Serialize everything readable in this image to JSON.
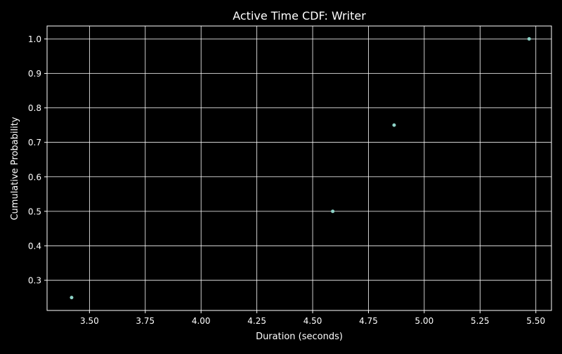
{
  "chart_data": {
    "type": "scatter",
    "title": "Active Time CDF: Writer",
    "xlabel": "Duration (seconds)",
    "ylabel": "Cumulative Probability",
    "xlim": [
      3.31,
      5.57
    ],
    "ylim": [
      0.2125,
      1.0375
    ],
    "xticks": [
      3.5,
      3.75,
      4.0,
      4.25,
      4.5,
      4.75,
      5.0,
      5.25,
      5.5
    ],
    "xtick_labels": [
      "3.50",
      "3.75",
      "4.00",
      "4.25",
      "4.50",
      "4.75",
      "5.00",
      "5.25",
      "5.50"
    ],
    "yticks": [
      0.3,
      0.4,
      0.5,
      0.6,
      0.7,
      0.8,
      0.9,
      1.0
    ],
    "ytick_labels": [
      "0.3",
      "0.4",
      "0.5",
      "0.6",
      "0.7",
      "0.8",
      "0.9",
      "1.0"
    ],
    "grid": true,
    "colors": {
      "background": "#000000",
      "foreground": "#ffffff",
      "grid": "#ffffff",
      "point": "#8dd3c7"
    },
    "series": [
      {
        "x": [
          3.42,
          4.59,
          4.865,
          5.47
        ],
        "y": [
          0.25,
          0.5,
          0.75,
          1.0
        ]
      }
    ]
  }
}
